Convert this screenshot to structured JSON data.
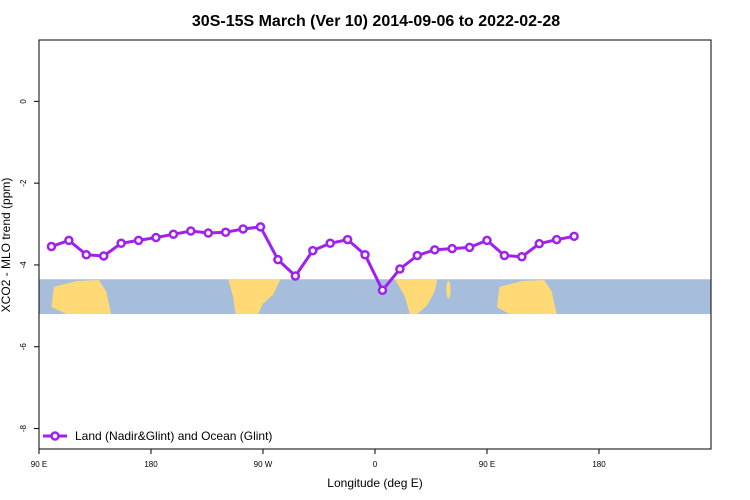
{
  "chart_data": {
    "type": "line",
    "title": "30S-15S March (Ver 10)   2014-09-06 to 2022-02-28",
    "xlabel": "Longitude (deg E)",
    "ylabel": "XCO2 - MLO trend (ppm)",
    "xlim": [
      -90,
      180
    ],
    "ylim": [
      -8.5,
      1.5
    ],
    "x_ticks": [
      {
        "value": -90,
        "label": "90 E"
      },
      {
        "value": -45,
        "label": "180"
      },
      {
        "value": 0,
        "label": "90 W"
      },
      {
        "value": 45,
        "label": "0"
      },
      {
        "value": 90,
        "label": "90 E"
      },
      {
        "value": 135,
        "label": "180"
      }
    ],
    "y_ticks": [
      0,
      -2,
      -4,
      -6,
      -8
    ],
    "legend": {
      "placement": "bottom-left"
    },
    "series": [
      {
        "name": "Land (Nadir&Glint) and Ocean (Glint)",
        "color": "#a020f0",
        "marker": "open-circle",
        "x": [
          -85,
          -78,
          -71,
          -64,
          -57,
          -50,
          -43,
          -36,
          -29,
          -22,
          -15,
          -8,
          -1,
          6,
          13,
          20,
          27,
          34,
          41,
          48,
          55,
          62,
          69,
          76,
          83,
          90,
          97,
          104,
          111,
          118,
          125
        ],
        "y": [
          -3.55,
          -3.4,
          -3.75,
          -3.78,
          -3.47,
          -3.4,
          -3.33,
          -3.25,
          -3.17,
          -3.22,
          -3.2,
          -3.12,
          -3.07,
          -3.87,
          -4.27,
          -3.65,
          -3.47,
          -3.38,
          -3.75,
          -4.62,
          -4.1,
          -3.77,
          -3.63,
          -3.6,
          -3.57,
          -3.4,
          -3.77,
          -3.8,
          -3.48,
          -3.38,
          -3.3
        ]
      }
    ]
  },
  "map_strip": {
    "ocean_color": "#a6bddb",
    "land_color": "#fed976",
    "ylim": [
      -5.2,
      -4.35
    ]
  }
}
